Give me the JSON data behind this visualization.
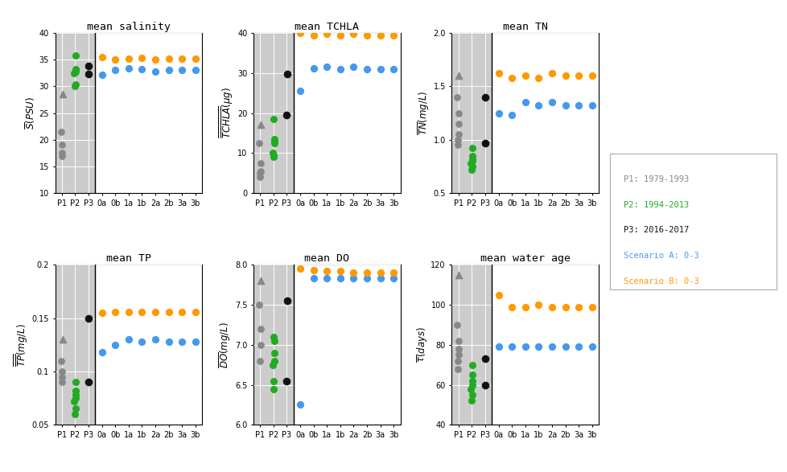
{
  "categories_hist": [
    "P1",
    "P2",
    "P3"
  ],
  "categories_scen": [
    "0a",
    "0b",
    "1a",
    "1b",
    "2a",
    "2b",
    "3a",
    "3b"
  ],
  "salinity": {
    "title": "mean salinity",
    "ylabel": "$\\overline{S}(PSU)$",
    "ylim": [
      10,
      40
    ],
    "yticks": [
      10,
      15,
      20,
      25,
      30,
      35,
      40
    ],
    "P1": [
      28.5,
      21.5,
      19.0,
      17.5,
      17.0
    ],
    "P2": [
      35.8,
      33.3,
      33.1,
      32.8,
      32.5,
      30.3,
      30.0
    ],
    "P3": [
      33.8,
      32.3
    ],
    "scen_A": [
      32.2,
      33.0,
      33.4,
      33.3,
      32.8,
      33.0,
      33.0,
      33.0
    ],
    "scen_B": [
      35.5,
      35.0,
      35.2,
      35.3,
      35.1,
      35.2,
      35.2,
      35.2
    ]
  },
  "tchla": {
    "title": "mean TCHLA",
    "ylabel": "$\\overline{\\overline{TCHLA}}(\\mu g)$",
    "ylim": [
      0,
      40
    ],
    "yticks": [
      0,
      10,
      20,
      30,
      40
    ],
    "P1": [
      17.0,
      12.5,
      7.5,
      5.5,
      5.0,
      4.0
    ],
    "P2": [
      18.5,
      13.5,
      13.0,
      12.5,
      10.0,
      9.5,
      9.0
    ],
    "P3": [
      29.7,
      19.5
    ],
    "scen_A": [
      25.5,
      31.2,
      31.5,
      31.0,
      31.5,
      31.0,
      31.0,
      31.0
    ],
    "scen_B": [
      40.0,
      39.5,
      39.8,
      39.5,
      39.8,
      39.5,
      39.5,
      39.5
    ]
  },
  "TN": {
    "title": "mean TN",
    "ylabel": "$\\overline{TN}(mg/L)$",
    "ylim": [
      0.5,
      2.0
    ],
    "yticks": [
      0.5,
      1.0,
      1.5,
      2.0
    ],
    "P1": [
      1.6,
      1.4,
      1.25,
      1.15,
      1.05,
      1.0,
      0.95
    ],
    "P2": [
      0.92,
      0.85,
      0.82,
      0.8,
      0.78,
      0.75,
      0.72
    ],
    "P3": [
      1.4,
      0.97
    ],
    "scen_A": [
      1.25,
      1.23,
      1.35,
      1.32,
      1.35,
      1.32,
      1.32,
      1.32
    ],
    "scen_B": [
      1.62,
      1.58,
      1.6,
      1.58,
      1.62,
      1.6,
      1.6,
      1.6
    ]
  },
  "TP": {
    "title": "mean TP",
    "ylabel": "$\\overline{\\overline{TP}}(mg/L)$",
    "ylim": [
      0.05,
      0.2
    ],
    "yticks": [
      0.05,
      0.1,
      0.15,
      0.2
    ],
    "P1": [
      0.13,
      0.11,
      0.1,
      0.095,
      0.09
    ],
    "P2": [
      0.09,
      0.082,
      0.078,
      0.075,
      0.072,
      0.065,
      0.06
    ],
    "P3": [
      0.15,
      0.09
    ],
    "scen_A": [
      0.118,
      0.125,
      0.13,
      0.128,
      0.13,
      0.128,
      0.128,
      0.128
    ],
    "scen_B": [
      0.155,
      0.156,
      0.156,
      0.156,
      0.156,
      0.156,
      0.156,
      0.156
    ]
  },
  "DO": {
    "title": "mean DO",
    "ylabel": "$\\overline{DO}(mg/L)$",
    "ylim": [
      6.0,
      8.0
    ],
    "yticks": [
      6.0,
      6.5,
      7.0,
      7.5,
      8.0
    ],
    "P1": [
      7.8,
      7.5,
      7.2,
      7.0,
      6.8
    ],
    "P2": [
      7.1,
      7.05,
      6.9,
      6.8,
      6.75,
      6.55,
      6.45
    ],
    "P3": [
      7.55,
      6.55
    ],
    "scen_A": [
      6.25,
      7.83,
      7.83,
      7.83,
      7.83,
      7.83,
      7.83,
      7.83
    ],
    "scen_B": [
      7.95,
      7.93,
      7.92,
      7.92,
      7.9,
      7.9,
      7.9,
      7.9
    ]
  },
  "water_age": {
    "title": "mean water age",
    "ylabel": "$\\overline{\\tau}(days)$",
    "ylim": [
      40,
      120
    ],
    "yticks": [
      40,
      60,
      80,
      100,
      120
    ],
    "P1": [
      115,
      90,
      82,
      78,
      75,
      72,
      68
    ],
    "P2": [
      70,
      65,
      62,
      60,
      58,
      55,
      52
    ],
    "P3": [
      73,
      60
    ],
    "scen_A": [
      79,
      79,
      79,
      79,
      79,
      79,
      79,
      79
    ],
    "scen_B": [
      105,
      99,
      99,
      100,
      99,
      99,
      99,
      99
    ]
  },
  "colors": {
    "P1": "#888888",
    "P2": "#22aa22",
    "P3": "#111111",
    "scen_A": "#4499ee",
    "scen_B": "#ff9900"
  },
  "legend": {
    "P1": "P1: 1979-1993",
    "P2": "P2: 1994-2013",
    "P3": "P3: 2016-2017",
    "scen_A": "Scenario A: 0-3",
    "scen_B": "Scenario B: 0-3"
  },
  "legend_colors": {
    "P1": "#888888",
    "P2": "#22aa22",
    "P3": "#111111",
    "scen_A": "#4499ee",
    "scen_B": "#ff9900"
  },
  "bg_color_P1": "#c8c8c8",
  "bg_color_P2": "#c8c8c8",
  "bg_color_hist": "#cccccc"
}
